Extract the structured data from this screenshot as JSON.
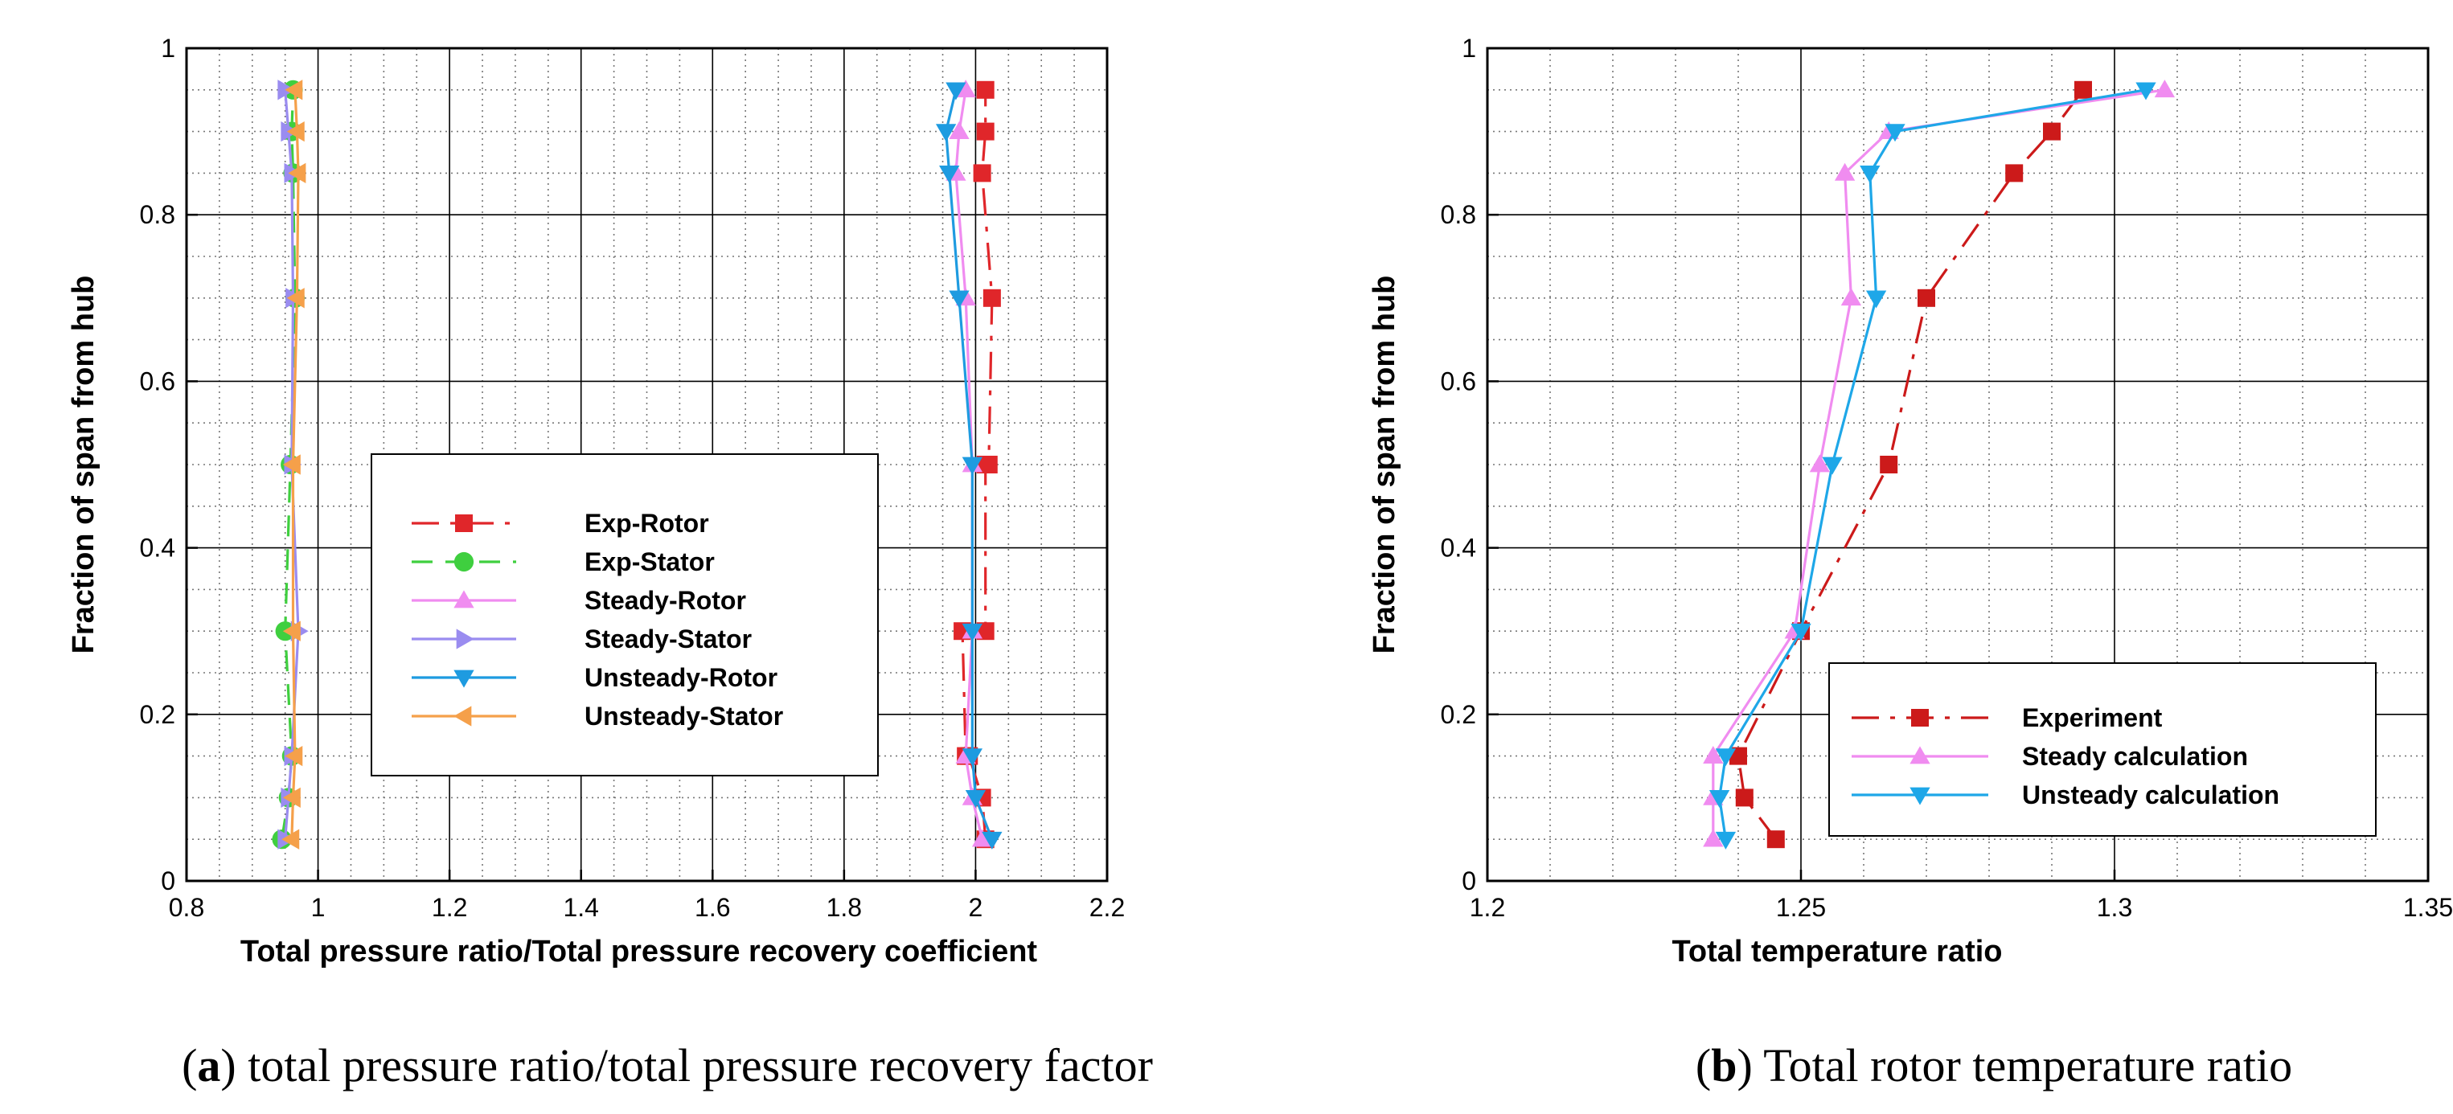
{
  "chart_data": [
    {
      "type": "line",
      "panel": "a",
      "xlabel": "Total pressure ratio/Total pressure recovery coefficient",
      "ylabel": "Fraction of span from hub",
      "xlim": [
        0.8,
        2.2
      ],
      "ylim": [
        0,
        1
      ],
      "x_ticks": [
        "0.8",
        "1",
        "1.2",
        "1.4",
        "1.6",
        "1.8",
        "2",
        "2.2"
      ],
      "y_ticks": [
        "0",
        "0.2",
        "0.4",
        "0.6",
        "0.8",
        "1"
      ],
      "legend_position": "center",
      "caption_label": "a",
      "caption_text": " total pressure ratio/total pressure recovery factor",
      "series": [
        {
          "name": "Exp-Rotor",
          "color": "#e0262a",
          "marker": "square",
          "dash": "dashdot",
          "x": [
            2.015,
            2.01,
            1.99,
            1.985,
            1.98,
            2.015,
            2.015,
            2.02,
            2.025,
            2.01,
            2.015,
            2.015
          ],
          "y": [
            0.05,
            0.1,
            0.15,
            0.15,
            0.3,
            0.3,
            0.5,
            0.5,
            0.7,
            0.85,
            0.9,
            0.95
          ]
        },
        {
          "name": "Exp-Stator",
          "color": "#3fcf3f",
          "marker": "circle",
          "dash": "dash",
          "x": [
            0.945,
            0.955,
            0.96,
            0.95,
            0.958,
            0.965,
            0.962,
            0.96,
            0.962
          ],
          "y": [
            0.05,
            0.1,
            0.15,
            0.3,
            0.5,
            0.7,
            0.85,
            0.9,
            0.95
          ]
        },
        {
          "name": "Steady-Rotor",
          "color": "#f08cf0",
          "marker": "triangle-up",
          "dash": "solid",
          "x": [
            2.01,
            1.995,
            1.985,
            1.995,
            1.995,
            1.985,
            1.97,
            1.975,
            1.985
          ],
          "y": [
            0.05,
            0.1,
            0.15,
            0.3,
            0.5,
            0.7,
            0.85,
            0.9,
            0.95
          ]
        },
        {
          "name": "Steady-Stator",
          "color": "#9a8cf0",
          "marker": "triangle-right",
          "dash": "solid",
          "x": [
            0.95,
            0.955,
            0.96,
            0.97,
            0.96,
            0.962,
            0.96,
            0.955,
            0.95
          ],
          "y": [
            0.05,
            0.1,
            0.15,
            0.3,
            0.5,
            0.7,
            0.85,
            0.9,
            0.95
          ]
        },
        {
          "name": "Unsteady-Rotor",
          "color": "#1e9be0",
          "marker": "triangle-down",
          "dash": "solid",
          "x": [
            2.025,
            2.0,
            1.995,
            1.995,
            1.995,
            1.975,
            1.96,
            1.955,
            1.97
          ],
          "y": [
            0.05,
            0.1,
            0.15,
            0.3,
            0.5,
            0.7,
            0.85,
            0.9,
            0.95
          ]
        },
        {
          "name": "Unsteady-Stator",
          "color": "#f5a04a",
          "marker": "triangle-left",
          "dash": "solid",
          "x": [
            0.96,
            0.962,
            0.965,
            0.962,
            0.962,
            0.968,
            0.97,
            0.968,
            0.965
          ],
          "y": [
            0.05,
            0.1,
            0.15,
            0.3,
            0.5,
            0.7,
            0.85,
            0.9,
            0.95
          ]
        }
      ]
    },
    {
      "type": "line",
      "panel": "b",
      "xlabel": "Total temperature ratio",
      "ylabel": "Fraction of span from hub",
      "xlim": [
        1.2,
        1.35
      ],
      "ylim": [
        0,
        1
      ],
      "x_ticks": [
        "1.2",
        "1.25",
        "1.3",
        "1.35"
      ],
      "y_ticks": [
        "0",
        "0.2",
        "0.4",
        "0.6",
        "0.8",
        "1"
      ],
      "legend_position": "lower-right",
      "caption_label": "b",
      "caption_text": " Total rotor temperature ratio",
      "series": [
        {
          "name": "Experiment",
          "color": "#cc1a1a",
          "marker": "square",
          "dash": "dashdot",
          "x": [
            1.246,
            1.241,
            1.24,
            1.25,
            1.264,
            1.27,
            1.284,
            1.29,
            1.295
          ],
          "y": [
            0.05,
            0.1,
            0.15,
            0.3,
            0.5,
            0.7,
            0.85,
            0.9,
            0.95
          ]
        },
        {
          "name": "Steady calculation",
          "color": "#f08cf0",
          "marker": "triangle-up",
          "dash": "solid",
          "x": [
            1.236,
            1.236,
            1.236,
            1.249,
            1.253,
            1.258,
            1.257,
            1.264,
            1.308
          ],
          "y": [
            0.05,
            0.1,
            0.15,
            0.3,
            0.5,
            0.7,
            0.85,
            0.9,
            0.95
          ]
        },
        {
          "name": "Unsteady calculation",
          "color": "#1ea7e8",
          "marker": "triangle-down",
          "dash": "solid",
          "x": [
            1.238,
            1.237,
            1.238,
            1.25,
            1.255,
            1.262,
            1.261,
            1.265,
            1.305
          ],
          "y": [
            0.05,
            0.1,
            0.15,
            0.3,
            0.5,
            0.7,
            0.85,
            0.9,
            0.95
          ]
        }
      ]
    }
  ]
}
